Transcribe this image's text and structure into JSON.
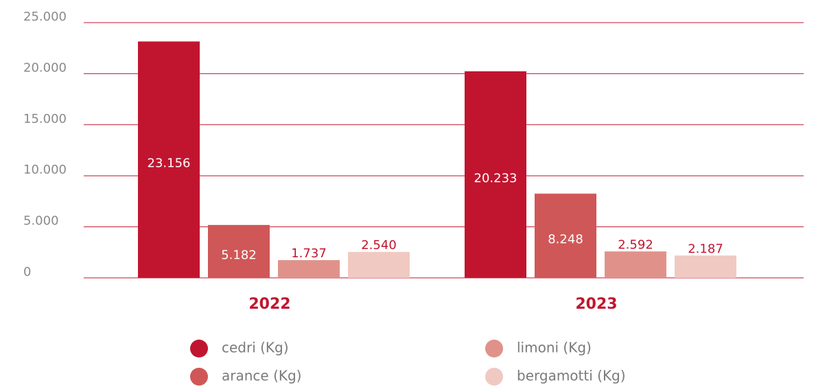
{
  "chart_data": {
    "type": "bar",
    "categories": [
      "2022",
      "2023"
    ],
    "series": [
      {
        "name": "cedri (Kg)",
        "color": "#c1152f",
        "label_color": "#ffffff",
        "values": [
          23156,
          20233
        ],
        "value_labels": [
          "23.156",
          "20.233"
        ]
      },
      {
        "name": "arance (Kg)",
        "color": "#d05757",
        "label_color": "#ffffff",
        "values": [
          5182,
          8248
        ],
        "value_labels": [
          "5.182",
          "8.248"
        ]
      },
      {
        "name": "limoni (Kg)",
        "color": "#e0928a",
        "label_color": "#c1152f",
        "values": [
          1737,
          2592
        ],
        "value_labels": [
          "1.737",
          "2.592"
        ]
      },
      {
        "name": "bergamotti (Kg)",
        "color": "#f0c9c2",
        "label_color": "#c1152f",
        "values": [
          2540,
          2187
        ],
        "value_labels": [
          "2.540",
          "2.187"
        ]
      }
    ],
    "ylim": [
      0,
      25000
    ],
    "yticks": [
      0,
      {
        "value": 5000,
        "label": "5.000"
      },
      {
        "value": 10000,
        "label": "10.000"
      },
      {
        "value": 15000,
        "label": "15.000"
      },
      {
        "value": 20000,
        "label": "20.000"
      },
      {
        "value": 25000,
        "label": "25.000"
      }
    ],
    "grid": true,
    "grid_color": "#c1152f",
    "legend": "bottom"
  }
}
